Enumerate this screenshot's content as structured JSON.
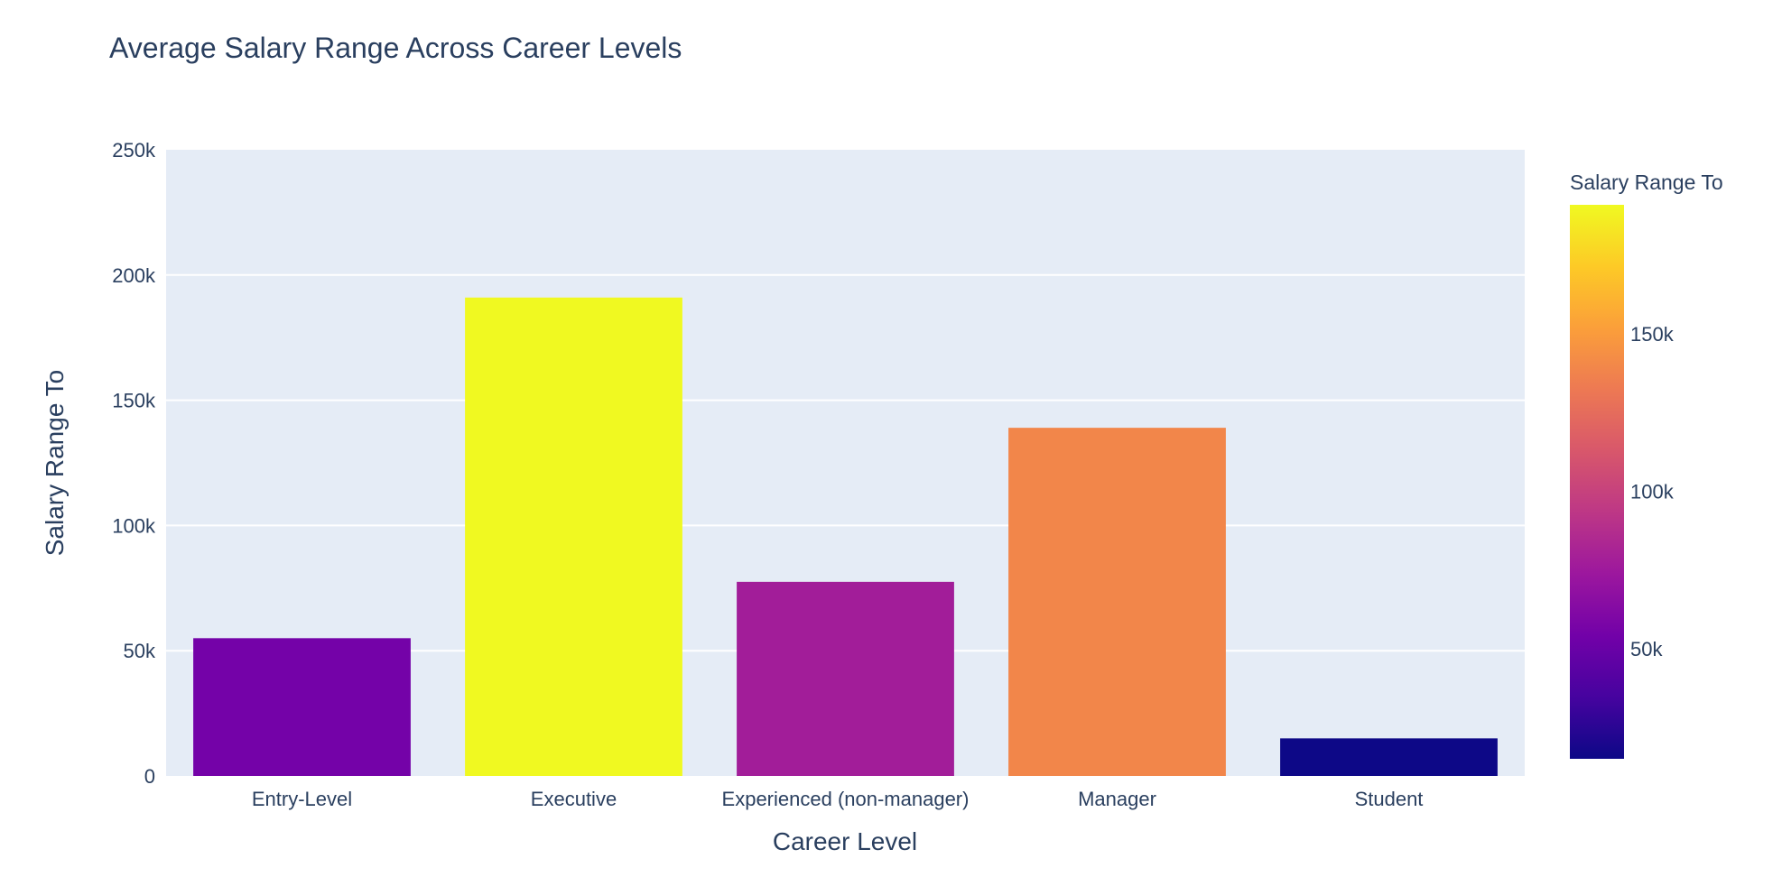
{
  "chart_data": {
    "type": "bar",
    "title": "Average Salary Range Across Career Levels",
    "xlabel": "Career Level",
    "ylabel": "Salary Range To",
    "categories": [
      "Entry-Level",
      "Executive",
      "Experienced (non-manager)",
      "Manager",
      "Student"
    ],
    "values": [
      55000,
      191000,
      77500,
      139000,
      15000
    ],
    "ylim": [
      0,
      250000
    ],
    "yticks": [
      0,
      50000,
      100000,
      150000,
      200000,
      250000
    ],
    "ytick_labels": [
      "0",
      "50k",
      "100k",
      "150k",
      "200k",
      "250k"
    ],
    "grid": true,
    "colorbar": {
      "title": "Salary Range To",
      "range": [
        15000,
        191000
      ],
      "ticks": [
        50000,
        100000,
        150000
      ],
      "tick_labels": [
        "50k",
        "100k",
        "150k"
      ],
      "colorscale": [
        "#0d0887",
        "#46039f",
        "#7201a8",
        "#9c179e",
        "#bd3786",
        "#d8576b",
        "#ed7953",
        "#fb9f3a",
        "#fdca26",
        "#f0f921"
      ]
    },
    "colors": {
      "plot_bg": "#e5ecf6",
      "grid": "#ffffff",
      "text": "#2a3f5f"
    }
  }
}
